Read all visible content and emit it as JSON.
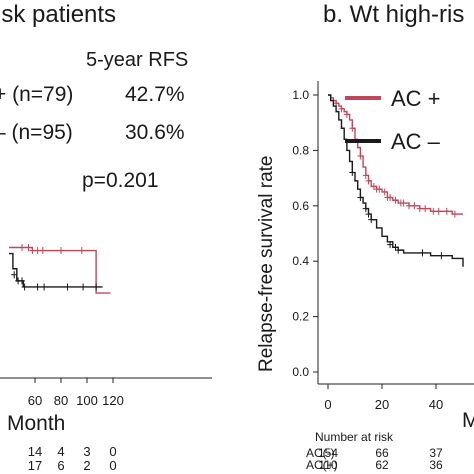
{
  "chart_data": [
    {
      "type": "line",
      "panel": "left",
      "title": "isk patients",
      "xlabel": "Month",
      "x_ticks": [
        60,
        80,
        100,
        120
      ],
      "stats": {
        "header": "5-year RFS",
        "rows": [
          {
            "label": "+ (n=79)",
            "value": "42.7%"
          },
          {
            "label": "– (n=95)",
            "value": "30.6%"
          }
        ],
        "pvalue": "p=0.201"
      },
      "series": [
        {
          "color": "#c0475a",
          "points": [
            [
              40,
              0.43
            ],
            [
              55,
              0.43
            ],
            [
              58,
              0.42
            ],
            [
              107,
              0.42
            ],
            [
              107,
              0.28
            ],
            [
              118,
              0.28
            ]
          ],
          "censors": [
            [
              50,
              0.43
            ],
            [
              55,
              0.43
            ],
            [
              58,
              0.42
            ],
            [
              62,
              0.42
            ],
            [
              66,
              0.42
            ],
            [
              80,
              0.42
            ],
            [
              96,
              0.42
            ]
          ]
        },
        {
          "color": "#1a1a1a",
          "points": [
            [
              40,
              0.41
            ],
            [
              43,
              0.36
            ],
            [
              46,
              0.32
            ],
            [
              50,
              0.32
            ],
            [
              51,
              0.3
            ],
            [
              112,
              0.3
            ]
          ],
          "censors": [
            [
              44,
              0.34
            ],
            [
              47,
              0.32
            ],
            [
              50,
              0.32
            ],
            [
              52,
              0.3
            ],
            [
              62,
              0.3
            ],
            [
              67,
              0.3
            ],
            [
              85,
              0.3
            ],
            [
              97,
              0.3
            ],
            [
              107,
              0.3
            ]
          ]
        }
      ],
      "risk_table": {
        "rows": [
          {
            "values": [
              "14",
              "4",
              "3",
              "0"
            ]
          },
          {
            "values": [
              "17",
              "6",
              "2",
              "0"
            ]
          }
        ]
      }
    },
    {
      "type": "line",
      "panel": "right",
      "title": "b. Wt high-ris",
      "ylabel": "Relapse-free survival rate",
      "xlabel": "M",
      "ylim": [
        0,
        1.05
      ],
      "y_ticks": [
        0.0,
        0.2,
        0.4,
        0.6,
        0.8,
        1.0
      ],
      "x_ticks": [
        0,
        20,
        40
      ],
      "legend": [
        {
          "label": "AC +",
          "color": "#c0475a"
        },
        {
          "label": "AC –",
          "color": "#1a1a1a"
        }
      ],
      "series": [
        {
          "name": "AC +",
          "color": "#c0475a",
          "points": [
            [
              0,
              1.0
            ],
            [
              1,
              0.99
            ],
            [
              2,
              0.98
            ],
            [
              3,
              0.97
            ],
            [
              4,
              0.96
            ],
            [
              5,
              0.95
            ],
            [
              6,
              0.94
            ],
            [
              7,
              0.93
            ],
            [
              8,
              0.91
            ],
            [
              9,
              0.88
            ],
            [
              10,
              0.84
            ],
            [
              11,
              0.81
            ],
            [
              12,
              0.78
            ],
            [
              13,
              0.74
            ],
            [
              14,
              0.71
            ],
            [
              15,
              0.69
            ],
            [
              16,
              0.67
            ],
            [
              18,
              0.66
            ],
            [
              20,
              0.65
            ],
            [
              22,
              0.63
            ],
            [
              24,
              0.62
            ],
            [
              26,
              0.61
            ],
            [
              30,
              0.6
            ],
            [
              34,
              0.59
            ],
            [
              38,
              0.58
            ],
            [
              42,
              0.58
            ],
            [
              46,
              0.57
            ],
            [
              50,
              0.57
            ]
          ],
          "censors": [
            [
              3,
              0.97
            ],
            [
              5,
              0.95
            ],
            [
              7,
              0.93
            ],
            [
              9,
              0.88
            ],
            [
              12,
              0.78
            ],
            [
              14,
              0.71
            ],
            [
              15,
              0.69
            ],
            [
              17,
              0.67
            ],
            [
              18,
              0.66
            ],
            [
              19,
              0.66
            ],
            [
              21,
              0.65
            ],
            [
              22,
              0.63
            ],
            [
              23,
              0.63
            ],
            [
              25,
              0.62
            ],
            [
              27,
              0.61
            ],
            [
              28,
              0.61
            ],
            [
              30,
              0.6
            ],
            [
              32,
              0.6
            ],
            [
              34,
              0.59
            ],
            [
              36,
              0.59
            ],
            [
              39,
              0.58
            ],
            [
              41,
              0.58
            ],
            [
              44,
              0.58
            ],
            [
              47,
              0.57
            ]
          ]
        },
        {
          "name": "AC –",
          "color": "#1a1a1a",
          "points": [
            [
              0,
              1.0
            ],
            [
              1,
              0.98
            ],
            [
              2,
              0.96
            ],
            [
              3,
              0.94
            ],
            [
              4,
              0.91
            ],
            [
              5,
              0.88
            ],
            [
              6,
              0.84
            ],
            [
              7,
              0.8
            ],
            [
              8,
              0.76
            ],
            [
              9,
              0.72
            ],
            [
              10,
              0.69
            ],
            [
              11,
              0.66
            ],
            [
              12,
              0.63
            ],
            [
              13,
              0.61
            ],
            [
              14,
              0.59
            ],
            [
              15,
              0.57
            ],
            [
              16,
              0.55
            ],
            [
              18,
              0.52
            ],
            [
              20,
              0.49
            ],
            [
              22,
              0.47
            ],
            [
              24,
              0.45
            ],
            [
              26,
              0.44
            ],
            [
              28,
              0.43
            ],
            [
              30,
              0.43
            ],
            [
              34,
              0.43
            ],
            [
              38,
              0.42
            ],
            [
              42,
              0.42
            ],
            [
              46,
              0.41
            ],
            [
              50,
              0.38
            ]
          ],
          "censors": [
            [
              9,
              0.72
            ],
            [
              12,
              0.63
            ],
            [
              14,
              0.59
            ],
            [
              15,
              0.57
            ],
            [
              16,
              0.55
            ],
            [
              23,
              0.46
            ],
            [
              25,
              0.45
            ],
            [
              26,
              0.44
            ],
            [
              35,
              0.43
            ],
            [
              42,
              0.42
            ]
          ]
        }
      ],
      "risk_table": {
        "title": "Number at risk",
        "rows": [
          {
            "label": "AC(-)",
            "values": [
              "154",
              "66",
              "37"
            ]
          },
          {
            "label": "AC(+)",
            "values": [
              "110",
              "62",
              "36"
            ]
          }
        ]
      }
    }
  ]
}
